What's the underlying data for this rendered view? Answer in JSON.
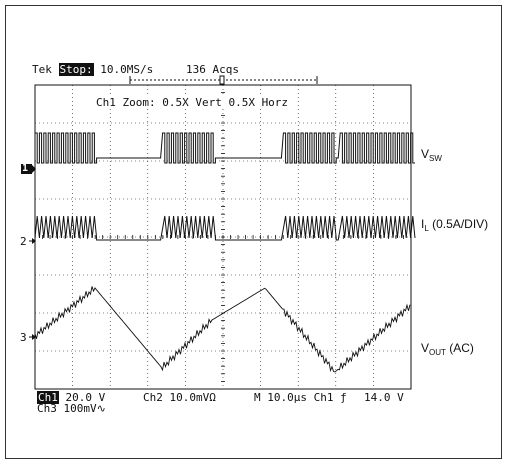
{
  "header": {
    "brand": "Tek",
    "run_state": "Stop:",
    "sample_rate": "10.0MS/s",
    "acquisitions": "136 Acqs"
  },
  "zoom": {
    "text": "Ch1 Zoom:   0.5X Vert   0.5X Horz"
  },
  "markers": {
    "ch1": "1",
    "ch2": "2",
    "ch3": "3"
  },
  "labels": {
    "vsw_main": "V",
    "vsw_sub": "SW",
    "il_main": "I",
    "il_sub": "L",
    "il_rest": " (0.5A/DIV)",
    "vout_main": "V",
    "vout_sub": "OUT",
    "vout_rest": " (AC)"
  },
  "settings": {
    "ch1_label": "Ch1",
    "ch1_value": "20.0 V",
    "ch2_text": "Ch2  10.0mVΩ",
    "time_text": "M 10.0µs  Ch1 ƒ",
    "trigger_level": "14.0 V",
    "ch3_text": "Ch3   100mV∿"
  },
  "colors": {
    "trace": "#111111",
    "background": "#ffffff"
  }
}
